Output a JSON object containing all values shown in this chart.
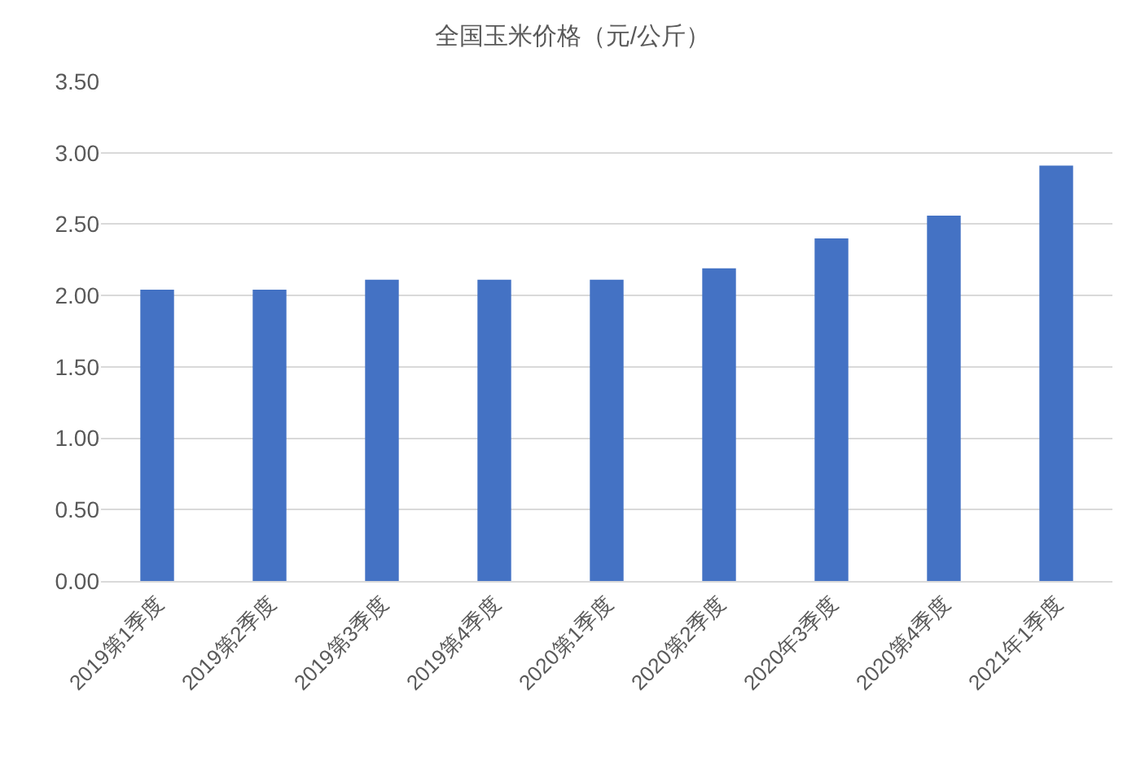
{
  "chart_data": {
    "type": "bar",
    "title": "全国玉米价格（元/公斤）",
    "categories": [
      "2019第1季度",
      "2019第2季度",
      "2019第3季度",
      "2019第4季度",
      "2020第1季度",
      "2020第2季度",
      "2020年3季度",
      "2020第4季度",
      "2021年1季度"
    ],
    "values": [
      2.04,
      2.04,
      2.11,
      2.11,
      2.11,
      2.19,
      2.4,
      2.56,
      2.91
    ],
    "color": "#4472c4",
    "ylim": [
      0,
      3.5
    ],
    "yticks": [
      {
        "value": 0,
        "label": "0.00"
      },
      {
        "value": 0.5,
        "label": "0.50"
      },
      {
        "value": 1,
        "label": "1.00"
      },
      {
        "value": 1.5,
        "label": "1.50"
      },
      {
        "value": 2,
        "label": "2.00"
      },
      {
        "value": 2.5,
        "label": "2.50"
      },
      {
        "value": 3,
        "label": "3.00"
      },
      {
        "value": 3.5,
        "label": "3.50"
      }
    ],
    "grid": "y"
  }
}
